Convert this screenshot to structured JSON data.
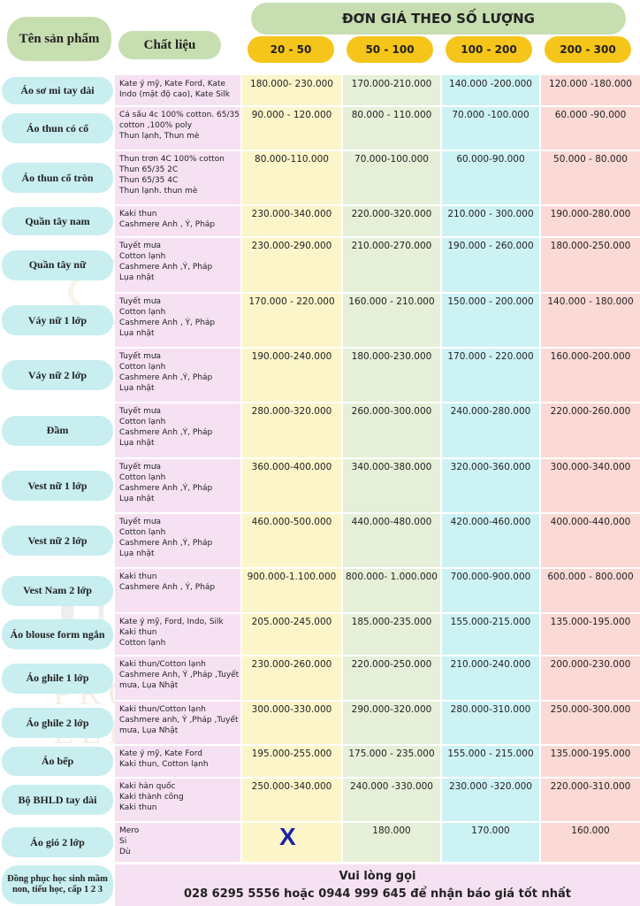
{
  "header": {
    "product_name": "Tên sản phẩm",
    "material": "Chất liệu",
    "price_title": "ĐƠN GIÁ THEO SỐ LƯỢNG",
    "quantities": [
      "20 - 50",
      "50 - 100",
      "100 - 200",
      "200 - 300"
    ]
  },
  "colors": {
    "header": "#c7deb0",
    "quantity": "#f6c51a",
    "name_pill": "#c8eef0",
    "material_col": "#f6e1f3",
    "col_20_50": "#fbf5c9",
    "col_50_100": "#e6efd8",
    "col_100_200": "#cdf2f4",
    "col_200_300": "#fbd9d5",
    "x_mark": "#1c22a6"
  },
  "rows": [
    {
      "name": "Áo sơ mi tay dài",
      "material": [
        "Kate ý mỹ, Kate Ford, Kate Indo (mật độ cao), Kate Silk"
      ],
      "prices": [
        "180.000- 230.000",
        "170.000-210.000",
        "140.000 -200.000",
        "120.000 -180.000"
      ]
    },
    {
      "name": "Áo thun có cổ",
      "material": [
        "Cá sấu 4c 100% cotton. 65/35 cotton ,100% poly",
        "Thun lạnh, Thun mè"
      ],
      "prices": [
        "90.000 - 120.000",
        "80.000 - 110.000",
        "70.000 -100.000",
        "60.000 -90.000"
      ]
    },
    {
      "name": "Áo thun cổ tròn",
      "material": [
        "Thun trơn 4C 100% cotton",
        "Thun 65/35 2C",
        "Thun 65/35 4C",
        "Thun lạnh. thun mè"
      ],
      "prices": [
        "80.000-110.000",
        "70.000-100.000",
        "60.000-90.000",
        "50.000 - 80.000"
      ]
    },
    {
      "name": "Quần tây nam",
      "material": [
        "Kaki thun",
        "Cashmere Anh , Ý, Pháp"
      ],
      "prices": [
        "230.000-340.000",
        "220.000-320.000",
        "210.000 - 300.000",
        "190.000-280.000"
      ]
    },
    {
      "name": "Quần tây nữ",
      "material": [
        "Tuyết mưa",
        "Cotton lạnh",
        "Cashmere Anh ,Ý, Pháp",
        "Lụa nhật"
      ],
      "prices": [
        "230.000-290.000",
        "210.000-270.000",
        "190.000 - 260.000",
        "180.000-250.000"
      ]
    },
    {
      "name": "Váy nữ 1 lớp",
      "material": [
        "Tuyết mưa",
        "Cotton lạnh",
        "Cashmere Anh , Ý, Pháp",
        "Lụa nhật"
      ],
      "prices": [
        "170.000 - 220.000",
        "160.000 - 210.000",
        "150.000 - 200.000",
        "140.000 - 180.000"
      ]
    },
    {
      "name": "Váy nữ 2 lớp",
      "material": [
        "Tuyết mưa",
        "Cotton lạnh",
        "Cashmere Anh ,Ý, Pháp",
        "Lụa nhật"
      ],
      "prices": [
        "190.000-240.000",
        "180.000-230.000",
        "170.000 - 220.000",
        "160.000-200.000"
      ]
    },
    {
      "name": "Đầm",
      "material": [
        "Tuyết mưa",
        "Cotton lạnh",
        "Cashmere Anh ,Ý, Pháp",
        "Lụa nhật"
      ],
      "prices": [
        "280.000-320.000",
        "260.000-300.000",
        "240.000-280.000",
        "220.000-260.000"
      ]
    },
    {
      "name": "Vest nữ 1 lớp",
      "material": [
        "Tuyết mưa",
        "Cotton lạnh",
        "Cashmere Anh ,Ý, Pháp",
        "Lụa nhật"
      ],
      "prices": [
        "360.000-400.000",
        "340.000-380.000",
        "320.000-360.000",
        "300.000-340.000"
      ]
    },
    {
      "name": "Vest nữ 2 lớp",
      "material": [
        "Tuyết mưa",
        "Cotton lạnh",
        "Cashmere Anh ,Ý, Pháp",
        "Lụa nhật"
      ],
      "prices": [
        "460.000-500.000",
        "440.000-480.000",
        "420.000-460.000",
        "400.000-440.000"
      ]
    },
    {
      "name": "Vest Nam 2 lớp",
      "material": [
        "Kaki thun",
        "Cashmere Anh , Ý, Pháp"
      ],
      "prices": [
        "900.000-1.100.000",
        "800.000- 1.000.000",
        "700.000-900.000",
        "600.000 - 800.000"
      ]
    },
    {
      "name": "Áo blouse form ngắn",
      "material": [
        "Kate ý mỹ, Ford, Indo, Silk",
        "Kaki thun",
        "Cotton lạnh"
      ],
      "prices": [
        "205.000-245.000",
        "185.000-235.000",
        "155.000-215.000",
        "135.000-195.000"
      ]
    },
    {
      "name": "Áo ghile 1 lớp",
      "material": [
        "Kaki thun/Cotton lạnh",
        "Cashmere Anh, Ý ,Pháp ,Tuyết mưa, Lụa Nhật"
      ],
      "prices": [
        "230.000-260.000",
        "220.000-250.000",
        "210.000-240.000",
        "200.000-230.000"
      ]
    },
    {
      "name": "Áo ghile 2 lớp",
      "material": [
        "Kaki thun/Cotton lạnh",
        "Cashmere anh, Ý ,Pháp ,Tuyết mưa, Lụa Nhật"
      ],
      "prices": [
        "300.000-330.000",
        "290.000-320.000",
        "280.000-310.000",
        "250.000-300.000"
      ]
    },
    {
      "name": "Áo bếp",
      "material": [
        "Kate ý mỹ, Kate Ford",
        "Kaki thun, Cotton lạnh"
      ],
      "prices": [
        "195.000-255.000",
        "175.000 - 235.000",
        "155.000 - 215.000",
        "135.000-195.000"
      ]
    },
    {
      "name": "Bộ BHLD tay dài",
      "material": [
        "Kaki hàn quốc",
        "Kaki thành công",
        "Kaki thun"
      ],
      "prices": [
        "250.000-340.000",
        "240.000 -330.000",
        "230.000 -320.000",
        "220.000-310.000"
      ]
    },
    {
      "name": "Áo gió 2 lớp",
      "material": [
        "Mero",
        "Si",
        "Dù"
      ],
      "prices": [
        "",
        "180.000",
        "170.000",
        "160.000"
      ]
    }
  ],
  "x_mark": "X",
  "last_row": {
    "name": "Đồng phục học sinh mầm non, tiểu học, cấp 1 2 3",
    "contact_line1": "Vui lòng gọi",
    "contact_line2": "028 6295 5556 hoặc 0944 999 645 để nhận báo giá tốt nhất"
  },
  "watermark": {
    "brand": "UNIFORMS",
    "tagline": "PROFESSIONAL & ELEGANT"
  }
}
